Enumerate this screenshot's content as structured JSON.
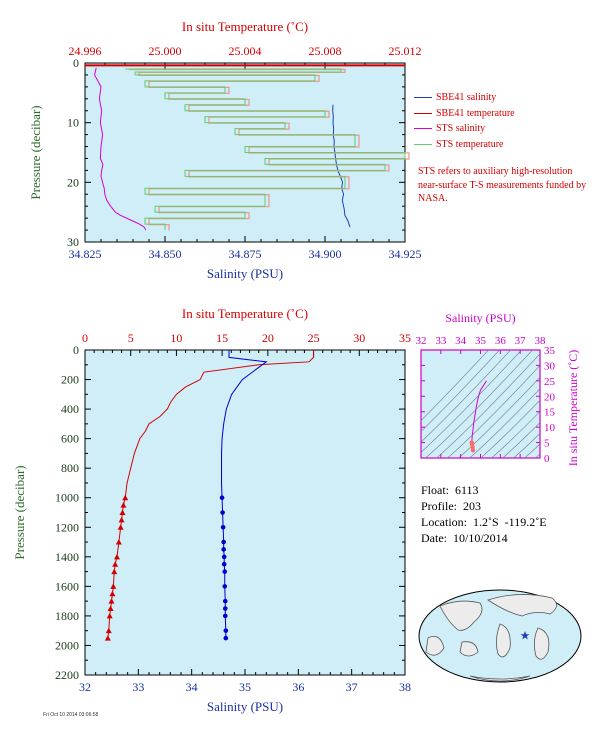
{
  "chart_data": [
    {
      "type": "line",
      "id": "top-profile",
      "title": "",
      "x_top_label": "In situ Temperature (˚C)",
      "x_top_ticks": [
        "24.996",
        "25.000",
        "25.004",
        "25.008",
        "25.012"
      ],
      "x_top_range": [
        24.996,
        25.012
      ],
      "x_bottom_label": "Salinity (PSU)",
      "x_bottom_ticks": [
        "34.825",
        "34.850",
        "34.875",
        "34.900",
        "34.925"
      ],
      "x_bottom_range": [
        34.825,
        34.925
      ],
      "ylabel": "Pressure (decibar)",
      "y_ticks": [
        "0",
        "10",
        "20",
        "30"
      ],
      "y_range": [
        0,
        30
      ],
      "y_inverted": true,
      "background": "#cfeef8",
      "series": [
        {
          "name": "SBE41 salinity",
          "color": "#1f3fbf",
          "axis": "salinity",
          "x": [
            34.9025,
            34.9024,
            34.9026,
            34.9025,
            34.9027,
            34.9026,
            34.9027,
            34.9029,
            34.9028,
            34.9031,
            34.9033,
            34.9036,
            34.904,
            34.9048,
            34.9055,
            34.9052,
            34.9058,
            34.9054,
            34.906,
            34.9062,
            34.9072,
            34.9078
          ],
          "y": [
            7,
            8,
            9,
            10,
            11,
            12,
            12.5,
            13,
            14,
            15,
            16,
            17,
            18,
            19,
            20,
            21,
            22,
            23,
            24.5,
            25.5,
            26.5,
            27.5
          ]
        },
        {
          "name": "SBE41 temperature",
          "color": "#d40000",
          "axis": "temperature",
          "x": [],
          "y": []
        },
        {
          "name": "STS salinity",
          "color": "#d400d4",
          "axis": "salinity",
          "x": [
            34.8285,
            34.828,
            34.83,
            34.8295,
            34.8302,
            34.8298,
            34.8305,
            34.83,
            34.8298,
            34.8306,
            34.8302,
            34.83,
            34.8305,
            34.831,
            34.8312,
            34.8318,
            34.833,
            34.8345,
            34.836,
            34.838,
            34.84,
            34.842,
            34.8435,
            34.844
          ],
          "y": [
            0.8,
            2,
            4,
            6,
            8,
            10,
            12,
            14,
            16,
            17,
            18,
            19,
            20,
            21,
            22,
            23,
            24,
            25,
            25.5,
            26,
            26.5,
            27,
            27.5,
            28
          ]
        },
        {
          "name": "STS temperature",
          "color": "#66cc66",
          "axis": "temperature",
          "x": [
            24.998,
            25.0088,
            24.9985,
            25.0075,
            24.999,
            25.003,
            25.0,
            25.004,
            25.001,
            25.008,
            25.002,
            25.006,
            25.0035,
            25.0095,
            25.004,
            25.012,
            25.005,
            25.011,
            25.001,
            25.009,
            24.999,
            25.005,
            24.9995,
            25.004,
            24.999,
            25.0
          ],
          "y": [
            1,
            1.5,
            2,
            3,
            4,
            5,
            6,
            7,
            8,
            9,
            10,
            11,
            12,
            14,
            15,
            16,
            17,
            18,
            19,
            21,
            22,
            24,
            25,
            26,
            27,
            28
          ]
        }
      ]
    },
    {
      "type": "line",
      "id": "main-profile",
      "title": "",
      "x_top_label": "In situ Temperature (˚C)",
      "x_top_ticks": [
        "0",
        "5",
        "10",
        "15",
        "20",
        "25",
        "30",
        "35"
      ],
      "x_top_range": [
        0,
        35
      ],
      "x_bottom_label": "Salinity (PSU)",
      "x_bottom_ticks": [
        "32",
        "33",
        "34",
        "35",
        "36",
        "37",
        "38"
      ],
      "x_bottom_range": [
        32,
        38
      ],
      "ylabel": "Pressure (decibar)",
      "y_ticks": [
        "0",
        "200",
        "400",
        "600",
        "800",
        "1000",
        "1200",
        "1400",
        "1600",
        "1800",
        "2000",
        "2200"
      ],
      "y_range": [
        0,
        2200
      ],
      "y_inverted": true,
      "background": "#cfeef8",
      "series": [
        {
          "name": "Temperature",
          "color": "#d40000",
          "axis": "temperature",
          "marker": "triangle",
          "x": [
            25.0,
            25.0,
            24.5,
            19.0,
            13.0,
            12.6,
            11.0,
            10.0,
            9.4,
            9.0,
            8.2,
            7.0,
            6.6,
            6.0,
            5.4,
            5.0,
            4.6,
            4.4,
            4.2,
            4.1,
            4.0,
            3.9,
            3.7,
            3.5,
            3.3,
            3.2,
            3.1,
            3.0,
            2.9,
            2.8,
            2.7,
            2.6,
            2.5
          ],
          "y": [
            0,
            50,
            80,
            100,
            150,
            200,
            250,
            300,
            350,
            400,
            450,
            500,
            550,
            600,
            700,
            800,
            900,
            1000,
            1050,
            1100,
            1150,
            1200,
            1300,
            1400,
            1450,
            1500,
            1600,
            1650,
            1700,
            1750,
            1800,
            1900,
            1950
          ],
          "marker_from_index": 17
        },
        {
          "name": "Salinity",
          "color": "#0000cc",
          "axis": "salinity",
          "marker": "circle",
          "x": [
            34.7,
            34.7,
            35.4,
            34.95,
            34.75,
            34.65,
            34.6,
            34.57,
            34.56,
            34.56,
            34.56,
            34.57,
            34.58,
            34.59,
            34.6,
            34.6,
            34.61,
            34.61,
            34.62,
            34.62,
            34.63,
            34.63,
            34.63,
            34.64,
            34.64
          ],
          "y": [
            0,
            50,
            80,
            200,
            300,
            400,
            500,
            600,
            700,
            800,
            900,
            1000,
            1100,
            1200,
            1300,
            1350,
            1400,
            1450,
            1500,
            1600,
            1700,
            1750,
            1800,
            1900,
            1950
          ],
          "marker_from_index": 11
        }
      ]
    },
    {
      "type": "scatter",
      "id": "ts-diagram",
      "title": "",
      "x_top_label": "Salinity (PSU)",
      "x_top_ticks": [
        "32",
        "33",
        "34",
        "35",
        "36",
        "37",
        "38"
      ],
      "x_range": [
        32,
        38
      ],
      "ylabel": "In situ Temperature (˚C)",
      "y_ticks": [
        "0",
        "5",
        "10",
        "15",
        "20",
        "25",
        "30",
        "35"
      ],
      "y_range": [
        0,
        35
      ],
      "series": [
        {
          "name": "T-S",
          "color": "#d400d4",
          "x": [
            35.3,
            35.2,
            35.0,
            34.9,
            34.8,
            34.75,
            34.7,
            34.65,
            34.62,
            34.6,
            34.58,
            34.57,
            34.56,
            34.57,
            34.6,
            34.62
          ],
          "y": [
            25,
            24,
            22,
            20,
            17,
            15,
            13,
            11,
            9,
            8,
            7,
            6,
            5,
            4.5,
            3.5,
            2.5
          ]
        }
      ]
    }
  ],
  "legend": {
    "items": [
      {
        "label": "SBE41 salinity",
        "color": "#1f3fbf"
      },
      {
        "label": "SBE41 temperature",
        "color": "#d40000"
      },
      {
        "label": "STS salinity",
        "color": "#d400d4"
      },
      {
        "label": "STS temperature",
        "color": "#66cc66"
      }
    ]
  },
  "note": "STS refers to auxiliary high-resolution near-surface T-S measurements funded by NASA.",
  "info": {
    "float": "Float:  6113",
    "profile": "Profile:  203",
    "location": "Location:  1.2˚S  -119.2˚E",
    "date": "Date:  10/10/2014"
  },
  "footer": "Fri Oct 10 2014 03:06:58",
  "colors": {
    "temperature": "#d40000",
    "salinity": "#1f3fbf",
    "pressure_label": "#2d6b2d",
    "ts": "#cc00cc"
  }
}
